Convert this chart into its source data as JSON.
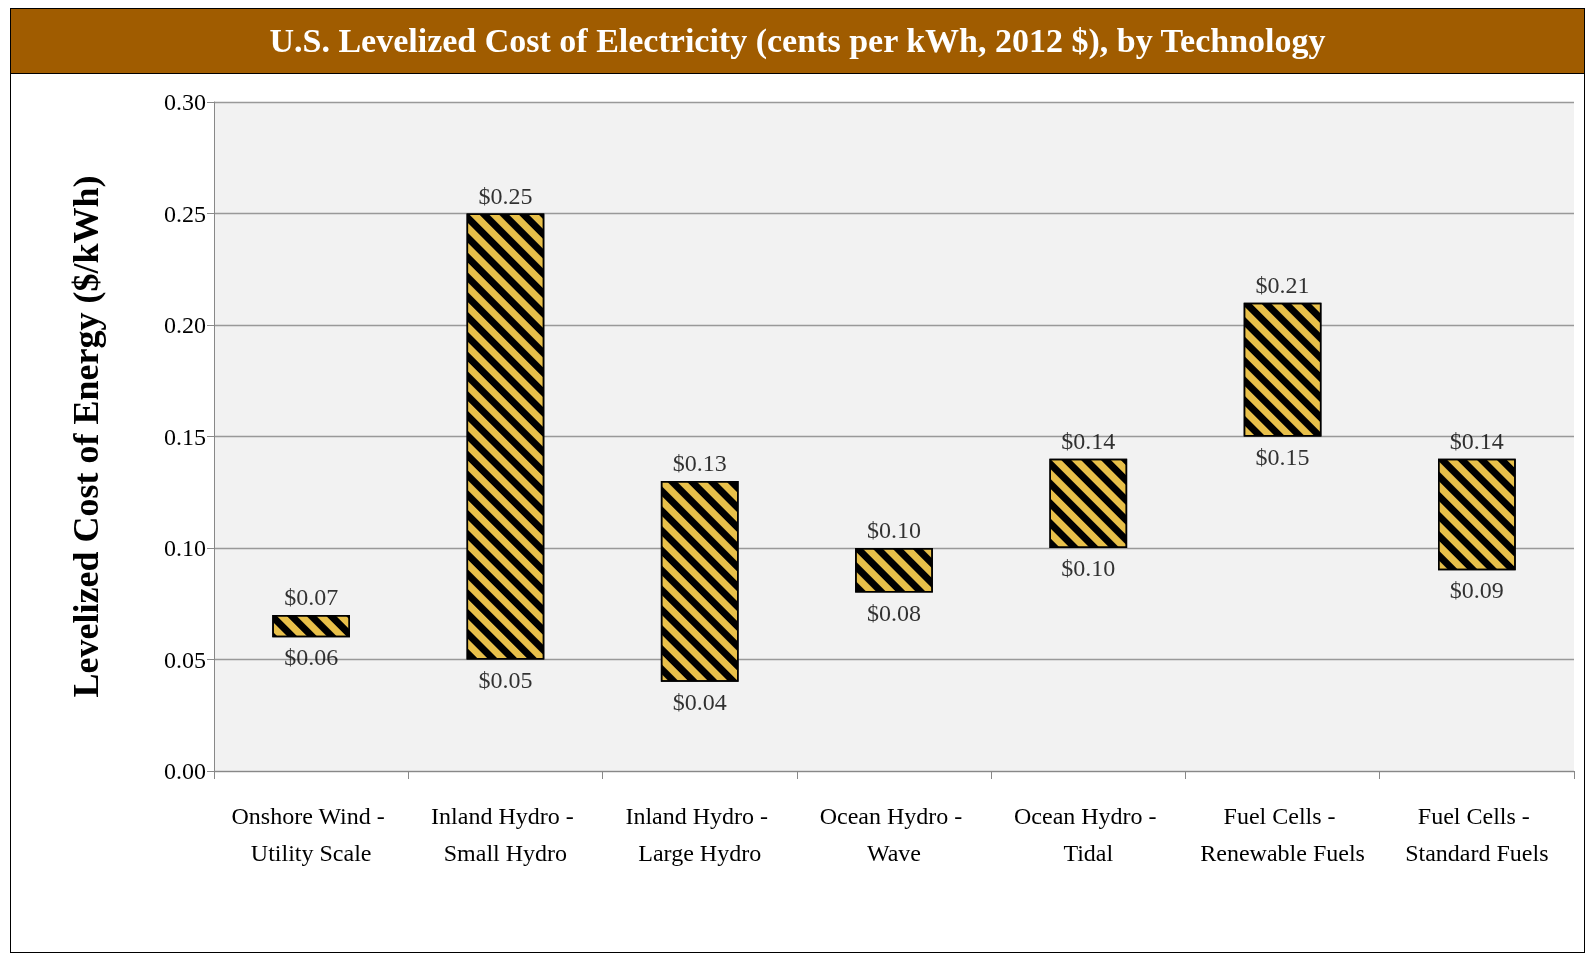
{
  "chart_data": {
    "type": "bar",
    "title": "U.S. Levelized Cost of Electricity (cents per kWh, 2012 $), by Technology",
    "ylabel": "Levelized Cost of Energy ($/kWh)",
    "categories": [
      "Onshore Wind - Utility Scale",
      "Inland Hydro - Small Hydro",
      "Inland Hydro - Large Hydro",
      "Ocean Hydro - Wave",
      "Ocean Hydro - Tidal",
      "Fuel Cells - Renewable Fuels",
      "Fuel Cells - Standard Fuels"
    ],
    "base": [
      0.06,
      0.05,
      0.04,
      0.08,
      0.1,
      0.15,
      0.09
    ],
    "values": [
      0.01,
      0.2,
      0.09,
      0.02,
      0.04,
      0.06,
      0.05
    ],
    "color": "#e8c04a",
    "ylim": [
      0,
      0.3
    ],
    "yticks": [
      {
        "value": 0,
        "label": "0.00"
      },
      {
        "value": 0.05,
        "label": "0.05"
      },
      {
        "value": 0.1,
        "label": "0.10"
      },
      {
        "value": 0.15,
        "label": "0.15"
      },
      {
        "value": 0.2,
        "label": "0.20"
      },
      {
        "value": 0.25,
        "label": "0.25"
      },
      {
        "value": 0.3,
        "label": "0.30"
      }
    ],
    "grid": "y",
    "annotations": [
      {
        "text": "$0.07",
        "x": "Onshore Wind - Utility Scale",
        "y": 0.07
      },
      {
        "text": "$0.06",
        "x": "Onshore Wind - Utility Scale",
        "y": 0.06
      },
      {
        "text": "$0.25",
        "x": "Inland Hydro - Small Hydro",
        "y": 0.25
      },
      {
        "text": "$0.05",
        "x": "Inland Hydro - Small Hydro",
        "y": 0.05
      },
      {
        "text": "$0.13",
        "x": "Inland Hydro - Large Hydro",
        "y": 0.13
      },
      {
        "text": "$0.04",
        "x": "Inland Hydro - Large Hydro",
        "y": 0.04
      },
      {
        "text": "$0.10",
        "x": "Ocean Hydro - Wave",
        "y": 0.1
      },
      {
        "text": "$0.08",
        "x": "Ocean Hydro - Wave",
        "y": 0.08
      },
      {
        "text": "$0.14",
        "x": "Ocean Hydro - Tidal",
        "y": 0.14
      },
      {
        "text": "$0.10",
        "x": "Ocean Hydro - Tidal",
        "y": 0.1
      },
      {
        "text": "$0.21",
        "x": "Fuel Cells - Renewable Fuels",
        "y": 0.21
      },
      {
        "text": "$0.15",
        "x": "Fuel Cells - Renewable Fuels",
        "y": 0.15
      },
      {
        "text": "$0.14",
        "x": "Fuel Cells - Standard Fuels",
        "y": 0.14
      },
      {
        "text": "$0.09",
        "x": "Fuel Cells - Standard Fuels",
        "y": 0.09
      }
    ]
  }
}
